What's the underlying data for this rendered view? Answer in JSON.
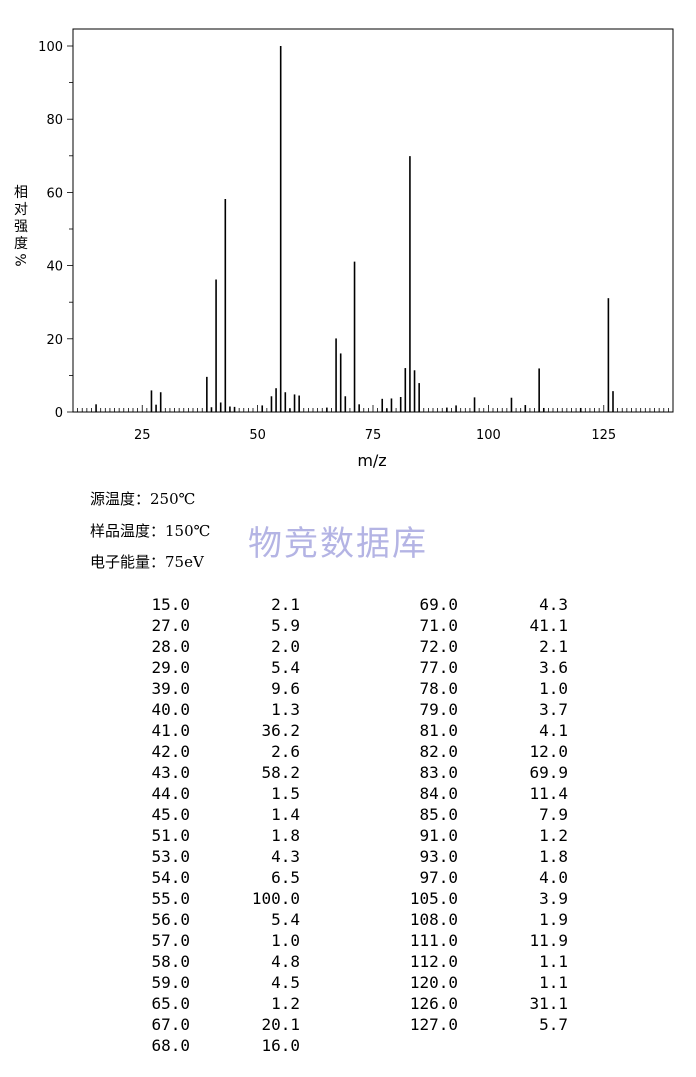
{
  "chart_data": {
    "type": "bar",
    "xlabel": "m/z",
    "ylabel": "相对强度%",
    "xlim": [
      10,
      140
    ],
    "ylim": [
      0,
      100
    ],
    "x_ticks": [
      "25",
      "50",
      "75",
      "100",
      "125"
    ],
    "y_ticks": [
      "0",
      "20",
      "40",
      "60",
      "80",
      "100"
    ],
    "grid": false,
    "x": [
      15,
      27,
      28,
      29,
      39,
      40,
      41,
      42,
      43,
      44,
      45,
      51,
      53,
      54,
      55,
      56,
      57,
      58,
      59,
      65,
      67,
      68,
      69,
      71,
      72,
      77,
      78,
      79,
      81,
      82,
      83,
      84,
      85,
      91,
      93,
      97,
      105,
      108,
      111,
      112,
      120,
      126,
      127
    ],
    "values": [
      2.1,
      5.9,
      2.0,
      5.4,
      9.6,
      1.3,
      36.2,
      2.6,
      58.2,
      1.5,
      1.4,
      1.8,
      4.3,
      6.5,
      100.0,
      5.4,
      1.0,
      4.8,
      4.5,
      1.2,
      20.1,
      16.0,
      4.3,
      41.1,
      2.1,
      3.6,
      1.0,
      3.7,
      4.1,
      12.0,
      69.9,
      11.4,
      7.9,
      1.2,
      1.8,
      4.0,
      3.9,
      1.9,
      11.9,
      1.1,
      1.1,
      31.1,
      5.7
    ]
  },
  "conditions": {
    "source_temp": "源温度：250℃",
    "sample_temp": "样品温度：150℃",
    "electron_energy": "电子能量：75eV"
  },
  "watermark": "物竞数据库",
  "peak_table": {
    "rows": [
      [
        "15.0",
        "2.1",
        "69.0",
        "4.3"
      ],
      [
        "27.0",
        "5.9",
        "71.0",
        "41.1"
      ],
      [
        "28.0",
        "2.0",
        "72.0",
        "2.1"
      ],
      [
        "29.0",
        "5.4",
        "77.0",
        "3.6"
      ],
      [
        "39.0",
        "9.6",
        "78.0",
        "1.0"
      ],
      [
        "40.0",
        "1.3",
        "79.0",
        "3.7"
      ],
      [
        "41.0",
        "36.2",
        "81.0",
        "4.1"
      ],
      [
        "42.0",
        "2.6",
        "82.0",
        "12.0"
      ],
      [
        "43.0",
        "58.2",
        "83.0",
        "69.9"
      ],
      [
        "44.0",
        "1.5",
        "84.0",
        "11.4"
      ],
      [
        "45.0",
        "1.4",
        "85.0",
        "7.9"
      ],
      [
        "51.0",
        "1.8",
        "91.0",
        "1.2"
      ],
      [
        "53.0",
        "4.3",
        "93.0",
        "1.8"
      ],
      [
        "54.0",
        "6.5",
        "97.0",
        "4.0"
      ],
      [
        "55.0",
        "100.0",
        "105.0",
        "3.9"
      ],
      [
        "56.0",
        "5.4",
        "108.0",
        "1.9"
      ],
      [
        "57.0",
        "1.0",
        "111.0",
        "11.9"
      ],
      [
        "58.0",
        "4.8",
        "112.0",
        "1.1"
      ],
      [
        "59.0",
        "4.5",
        "120.0",
        "1.1"
      ],
      [
        "65.0",
        "1.2",
        "126.0",
        "31.1"
      ],
      [
        "67.0",
        "20.1",
        "127.0",
        "5.7"
      ],
      [
        "68.0",
        "16.0",
        "",
        ""
      ]
    ]
  }
}
